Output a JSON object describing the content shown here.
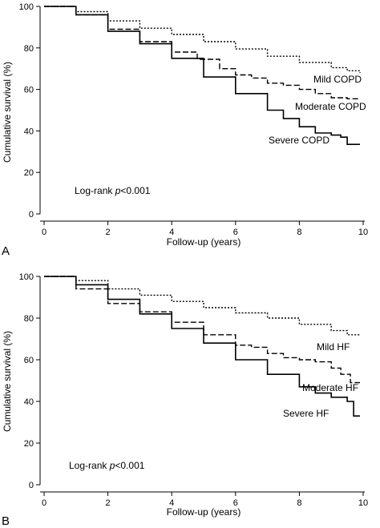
{
  "chart_data": [
    {
      "type": "line",
      "panel_label": "A",
      "xlabel": "Follow-up (years)",
      "ylabel": "Cumulative survival (%)",
      "xlim": [
        0,
        10
      ],
      "ylim": [
        0,
        100
      ],
      "xticks": [
        "0",
        "2",
        "4",
        "6",
        "8",
        "10"
      ],
      "yticks": [
        "0",
        "20",
        "40",
        "60",
        "80",
        "100"
      ],
      "annotation": {
        "prefix": "Log-rank ",
        "italic": "p",
        "suffix": "<0.001"
      },
      "series": [
        {
          "name": "Mild COPD",
          "style": "dotted",
          "x": [
            0,
            0.5,
            1,
            2,
            3,
            4,
            5,
            6,
            7,
            8,
            9,
            9.5,
            9.9
          ],
          "y": [
            100,
            100,
            97.5,
            93,
            89.5,
            86.5,
            83,
            79.5,
            76,
            73,
            70.5,
            69,
            68
          ]
        },
        {
          "name": "Moderate COPD",
          "style": "dashed",
          "x": [
            0,
            0.5,
            1,
            2,
            3,
            4,
            4.8,
            5.5,
            6,
            6.5,
            7,
            7.5,
            8,
            8.5,
            9,
            9.5,
            9.9
          ],
          "y": [
            100,
            100,
            96,
            89,
            83,
            78,
            74.5,
            70,
            67,
            65.5,
            63,
            62,
            60,
            58,
            56,
            55.5,
            55.5
          ]
        },
        {
          "name": "Severe COPD",
          "style": "solid",
          "x": [
            0,
            0.5,
            1,
            2,
            3,
            4,
            5,
            6,
            7,
            7.5,
            8,
            8.5,
            9,
            9.3,
            9.5,
            9.9
          ],
          "y": [
            100,
            100,
            96,
            88,
            82,
            75,
            66,
            58,
            50,
            46,
            42,
            39,
            38,
            37,
            33.5,
            33.5
          ]
        }
      ]
    },
    {
      "type": "line",
      "panel_label": "B",
      "xlabel": "Follow-up (years)",
      "ylabel": "Cumulative survival (%)",
      "xlim": [
        0,
        10
      ],
      "ylim": [
        0,
        100
      ],
      "xticks": [
        "0",
        "2",
        "4",
        "6",
        "8",
        "10"
      ],
      "yticks": [
        "0",
        "20",
        "40",
        "60",
        "80",
        "100"
      ],
      "annotation": {
        "prefix": "Log-rank ",
        "italic": "p",
        "suffix": "<0.001"
      },
      "series": [
        {
          "name": "Mild HF",
          "style": "dotted",
          "x": [
            0,
            0.5,
            1,
            2,
            3,
            4,
            5,
            6,
            7,
            8,
            9,
            9.5,
            9.9
          ],
          "y": [
            100,
            100,
            98,
            94,
            91,
            88,
            85,
            82.5,
            80,
            77,
            74,
            72,
            71.5
          ]
        },
        {
          "name": "Moderate HF",
          "style": "dashed",
          "x": [
            0,
            0.5,
            1,
            2,
            3,
            4,
            5,
            6,
            6.5,
            7,
            7.5,
            8,
            8.5,
            9,
            9.3,
            9.6,
            9.9
          ],
          "y": [
            100,
            100,
            94,
            87,
            83,
            78,
            72,
            67,
            66,
            63,
            61,
            60,
            59,
            56,
            53,
            49,
            49
          ]
        },
        {
          "name": "Severe HF",
          "style": "solid",
          "x": [
            0,
            0.5,
            1,
            2,
            3,
            4,
            5,
            6,
            7,
            8,
            8.5,
            9,
            9.5,
            9.7,
            9.9
          ],
          "y": [
            100,
            100,
            96,
            89,
            82,
            75,
            68,
            60,
            53,
            47,
            44,
            42,
            40,
            33,
            33
          ]
        }
      ]
    }
  ]
}
